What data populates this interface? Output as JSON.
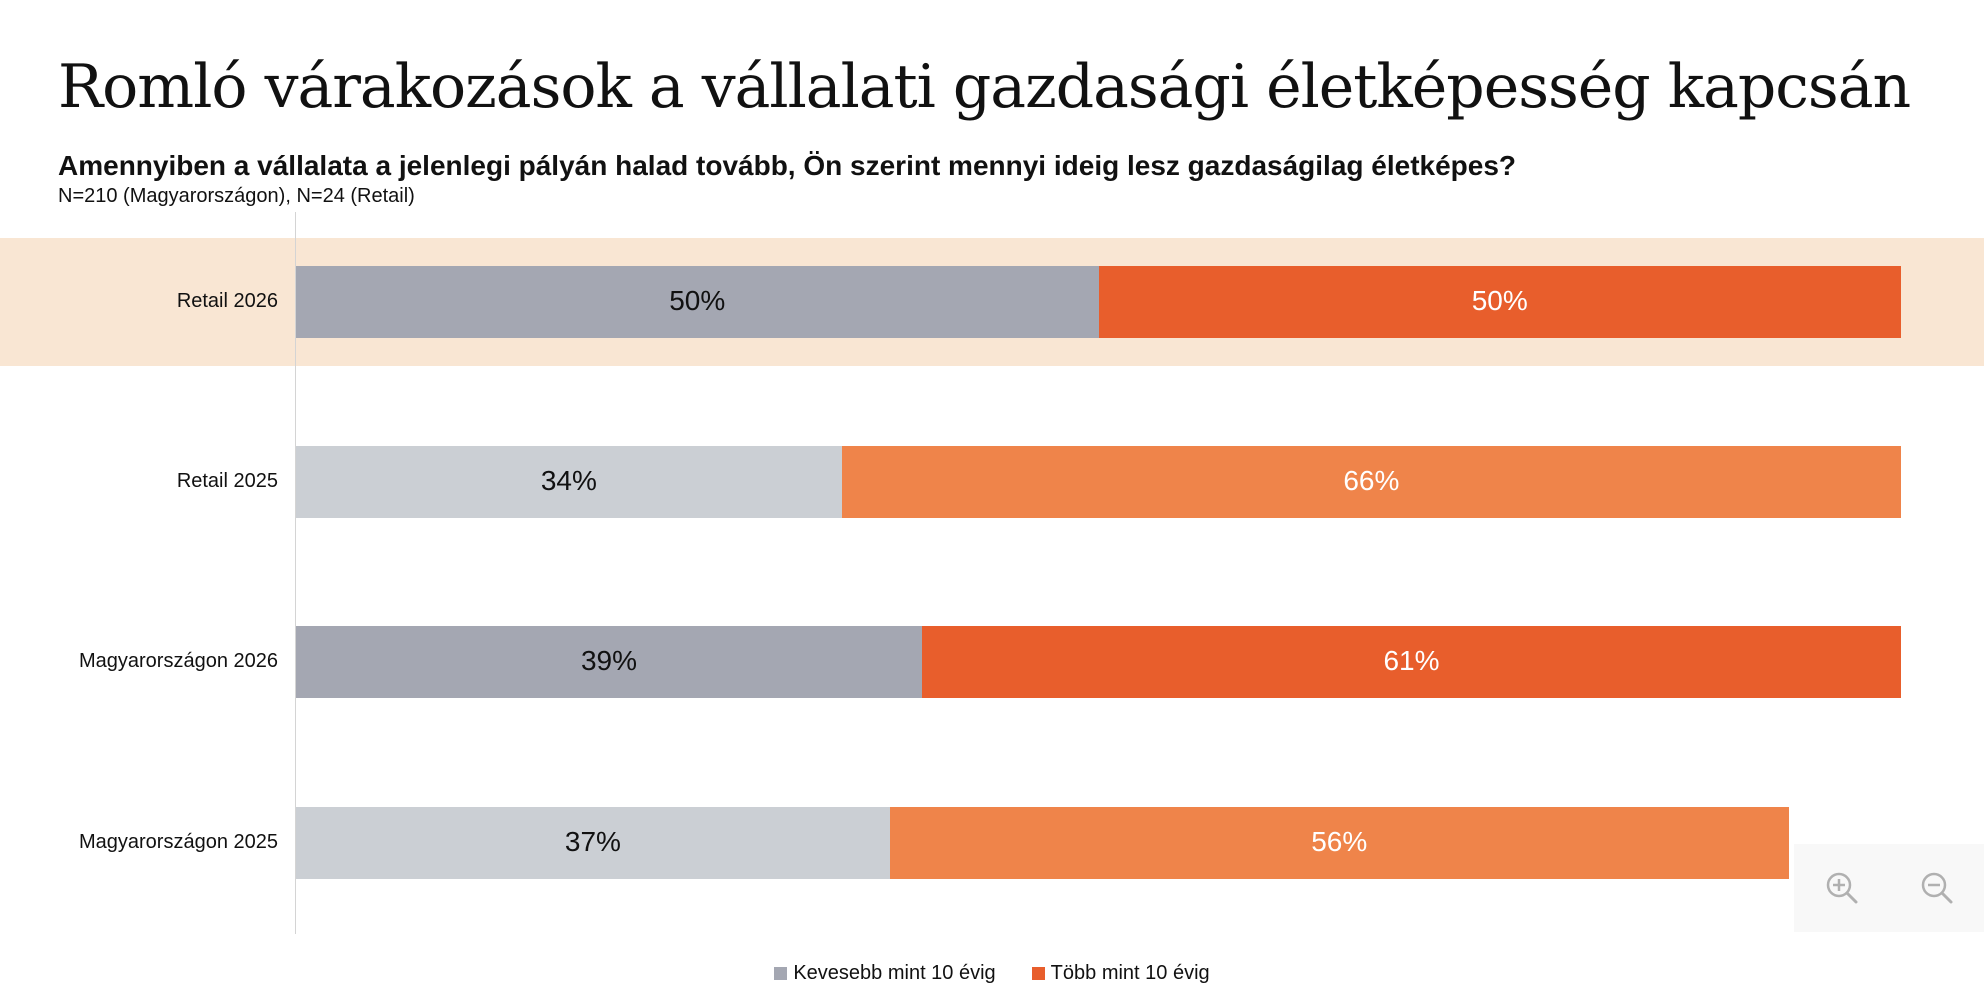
{
  "page": {
    "title": "Romló várakozások a vállalati gazdasági életképesség kapcsán",
    "subtitle": "Amennyiben a vállalata a jelenlegi pályán halad tovább, Ön szerint mennyi ideig lesz gazdaságilag életképes?",
    "note": "N=210 (Magyarországon), N=24 (Retail)"
  },
  "chart_data": {
    "type": "bar",
    "orientation": "horizontal",
    "stacked": true,
    "categories": [
      "Retail 2026",
      "Retail 2025",
      "Magyarországon 2026",
      "Magyarországon 2025"
    ],
    "highlighted_category": "Retail 2026",
    "series": [
      {
        "name": "Kevesebb mint 10 évig",
        "values": [
          50,
          34,
          39,
          37
        ],
        "labels": [
          "50%",
          "34%",
          "39%",
          "37%"
        ],
        "colors": [
          "#a4a7b2",
          "#cbcfd4",
          "#a4a7b2",
          "#cbcfd4"
        ]
      },
      {
        "name": "Több mint 10 évig",
        "values": [
          50,
          66,
          61,
          56
        ],
        "labels": [
          "50%",
          "66%",
          "61%",
          "56%"
        ],
        "colors": [
          "#e85e2c",
          "#ef844a",
          "#e85e2c",
          "#ef844a"
        ]
      }
    ],
    "legend_colors": [
      "#a4a7b2",
      "#e85e2c"
    ],
    "highlight_color": "#f9e6d3",
    "legend_position": "bottom",
    "grid": false
  },
  "zoom": {
    "zoom_in_icon": "zoom-in-icon",
    "zoom_out_icon": "zoom-out-icon"
  }
}
